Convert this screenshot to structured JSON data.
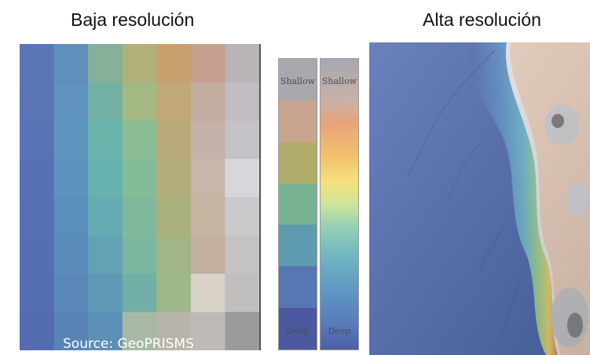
{
  "titles": {
    "left": "Baja resolución",
    "right": "Alta resolución"
  },
  "source": "Source: GeoPRISMS",
  "legend": {
    "shallow_label": "Shallow",
    "deep_label": "Deep",
    "discrete_colors": [
      "#a8a8ae",
      "#c9a48f",
      "#b0ad6a",
      "#77b292",
      "#5e9ab0",
      "#5777b0",
      "#4c58a0"
    ]
  },
  "lowres_grid": {
    "rows": 8,
    "cols": 7,
    "colors": [
      [
        "#5b76b5",
        "#5f8fbb",
        "#86b09a",
        "#b1b078",
        "#c7a06e",
        "#c79f8e",
        "#b9b4b6"
      ],
      [
        "#5a74b4",
        "#5f93bd",
        "#72b1a4",
        "#a3b882",
        "#c0a877",
        "#c3aca0",
        "#c0bcbf"
      ],
      [
        "#5873b4",
        "#5d95bf",
        "#6cb4ac",
        "#8bbd94",
        "#b8aa78",
        "#c5b2a8",
        "#c4c2c4"
      ],
      [
        "#5771b3",
        "#5c92bd",
        "#68b2b0",
        "#85bc98",
        "#b4ad7a",
        "#c8b6aa",
        "#d8d6d8"
      ],
      [
        "#5670b2",
        "#5b8fbb",
        "#66aab3",
        "#80b89b",
        "#aab17f",
        "#c6b5a2",
        "#cbc8cb"
      ],
      [
        "#556fb1",
        "#5a8cba",
        "#62a2b4",
        "#7bb79f",
        "#a1b586",
        "#c3b09e",
        "#c5c2c2"
      ],
      [
        "#546eb0",
        "#5988b8",
        "#5f99b6",
        "#72afa6",
        "#9db889",
        "#d9d2c6",
        "#c0bfbf"
      ],
      [
        "#536caf",
        "#5883b6",
        "#5c8fb6",
        "#a7b9a5",
        "#b8b4ac",
        "#bdbab8",
        "#9b9b9d"
      ]
    ]
  },
  "icons": {
    "hillshade": "hillshade-relief-image"
  }
}
